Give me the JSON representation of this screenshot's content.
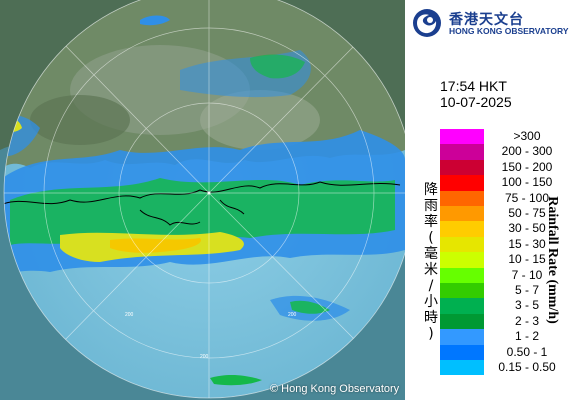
{
  "organization": {
    "name_zh": "香港天文台",
    "name_en": "HONG KONG OBSERVATORY"
  },
  "timestamp": {
    "time": "17:54 HKT",
    "date": "10-07-2025"
  },
  "legend": {
    "ylabel_zh": "降雨率(毫米/小時)",
    "ylabel_en": "Rainfall Rate (mm/h)",
    "rows": [
      {
        "label": ">300",
        "color": "#ff00ff"
      },
      {
        "label": "200 - 300",
        "color": "#cc0099"
      },
      {
        "label": "150 - 200",
        "color": "#cc0033"
      },
      {
        "label": "100 - 150",
        "color": "#ff0000"
      },
      {
        "label": "75 - 100",
        "color": "#ff6600"
      },
      {
        "label": "50 - 75",
        "color": "#ff9900"
      },
      {
        "label": "30 - 50",
        "color": "#ffcc00"
      },
      {
        "label": "15 - 30",
        "color": "#e6e600"
      },
      {
        "label": "10 - 15",
        "color": "#ccff00"
      },
      {
        "label": "7 - 10",
        "color": "#66ff00"
      },
      {
        "label": "5 - 7",
        "color": "#33cc00"
      },
      {
        "label": "3 - 5",
        "color": "#00b050"
      },
      {
        "label": "2 - 3",
        "color": "#009933"
      },
      {
        "label": "1 - 2",
        "color": "#3399ff"
      },
      {
        "label": "0.50 - 1",
        "color": "#0077ff"
      },
      {
        "label": "0.15 - 0.50",
        "color": "#00bfff"
      }
    ]
  },
  "map": {
    "range_ring_labels": [
      "200",
      "200",
      "200"
    ],
    "copyright": "© Hong Kong Observatory"
  }
}
